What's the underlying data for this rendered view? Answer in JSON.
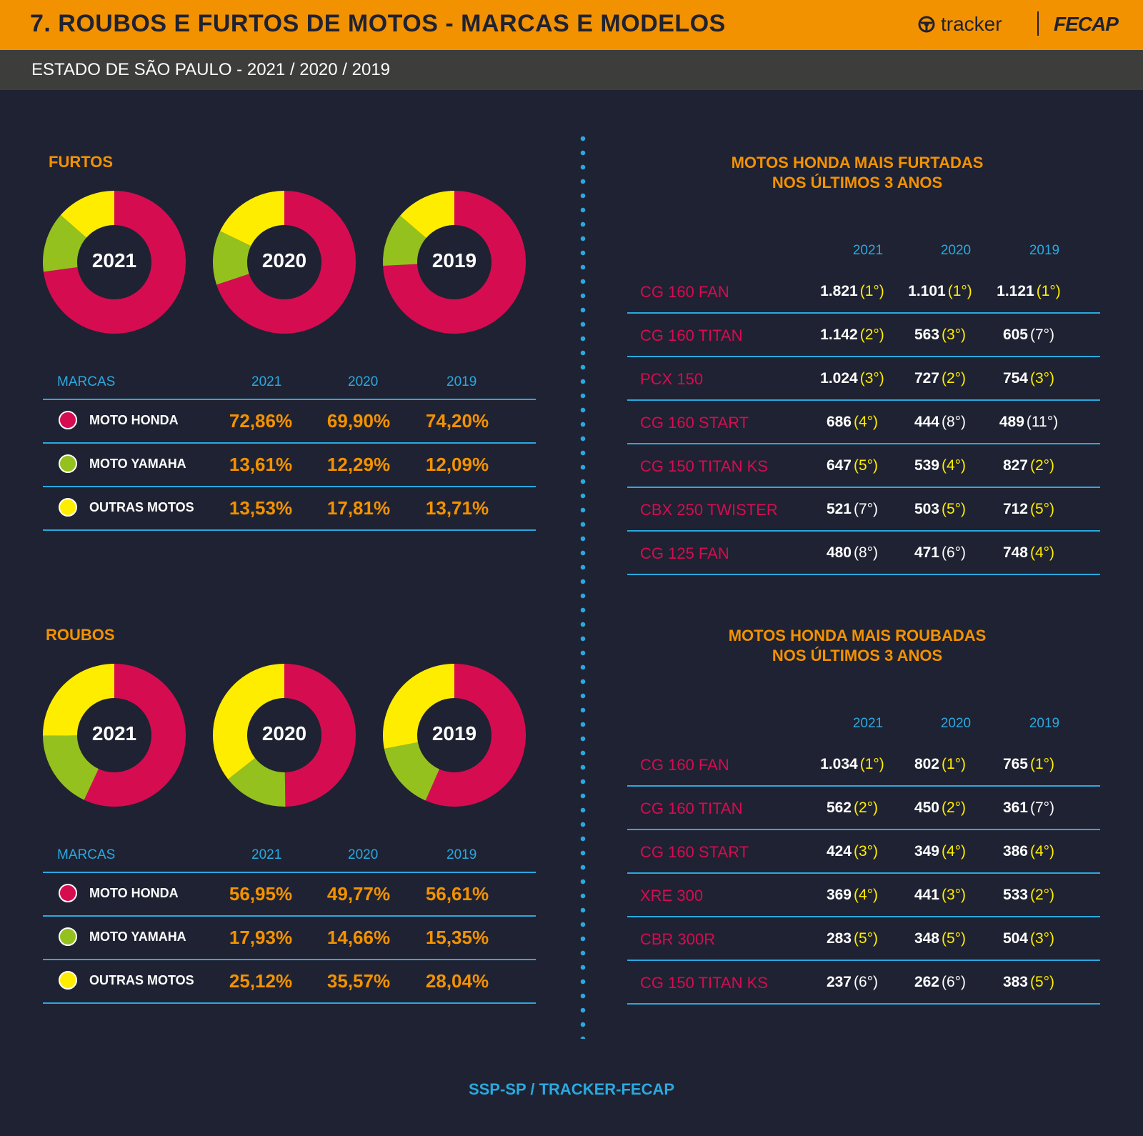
{
  "header": {
    "title": "7. ROUBOS E FURTOS DE MOTOS - MARCAS E MODELOS",
    "brand_tracker": "tracker",
    "brand_fecap": "FECAP",
    "subtitle": "ESTADO DE SÃO PAULO - 2021 / 2020 / 2019"
  },
  "colors": {
    "honda": "#d60c51",
    "yamaha": "#95c11f",
    "outras": "#ffed00",
    "accent": "#f39200",
    "blue": "#29a9e0",
    "rank_top": "#ffed00",
    "rank_other": "#ffffff"
  },
  "chart_data": [
    {
      "type": "pie",
      "title": "FURTOS",
      "categories": [
        "MOTO HONDA",
        "MOTO YAMAHA",
        "OUTRAS MOTOS"
      ],
      "series": [
        {
          "name": "2021",
          "values": [
            72.86,
            13.61,
            13.53
          ]
        },
        {
          "name": "2020",
          "values": [
            69.9,
            12.29,
            17.81
          ]
        },
        {
          "name": "2019",
          "values": [
            74.2,
            12.09,
            13.71
          ]
        }
      ]
    },
    {
      "type": "pie",
      "title": "ROUBOS",
      "categories": [
        "MOTO HONDA",
        "MOTO YAMAHA",
        "OUTRAS MOTOS"
      ],
      "series": [
        {
          "name": "2021",
          "values": [
            56.95,
            17.93,
            25.12
          ]
        },
        {
          "name": "2020",
          "values": [
            49.77,
            14.66,
            35.57
          ]
        },
        {
          "name": "2019",
          "values": [
            56.61,
            15.35,
            28.04
          ]
        }
      ]
    }
  ],
  "furtos": {
    "label": "FURTOS",
    "years": [
      "2021",
      "2020",
      "2019"
    ],
    "table": {
      "head": [
        "MARCAS",
        "2021",
        "2020",
        "2019"
      ],
      "rows": [
        {
          "name": "MOTO HONDA",
          "key": "honda",
          "values": [
            "72,86%",
            "69,90%",
            "74,20%"
          ]
        },
        {
          "name": "MOTO YAMAHA",
          "key": "yamaha",
          "values": [
            "13,61%",
            "12,29%",
            "12,09%"
          ]
        },
        {
          "name": "OUTRAS MOTOS",
          "key": "outras",
          "values": [
            "13,53%",
            "17,81%",
            "13,71%"
          ]
        }
      ]
    }
  },
  "roubos": {
    "label": "ROUBOS",
    "years": [
      "2021",
      "2020",
      "2019"
    ],
    "table": {
      "head": [
        "MARCAS",
        "2021",
        "2020",
        "2019"
      ],
      "rows": [
        {
          "name": "MOTO HONDA",
          "key": "honda",
          "values": [
            "56,95%",
            "49,77%",
            "56,61%"
          ]
        },
        {
          "name": "MOTO YAMAHA",
          "key": "yamaha",
          "values": [
            "17,93%",
            "14,66%",
            "15,35%"
          ]
        },
        {
          "name": "OUTRAS MOTOS",
          "key": "outras",
          "values": [
            "25,12%",
            "35,57%",
            "28,04%"
          ]
        }
      ]
    }
  },
  "furtadas": {
    "title_line1": "MOTOS HONDA MAIS FURTADAS",
    "title_line2": "NOS ÚLTIMOS 3 ANOS",
    "years": [
      "2021",
      "2020",
      "2019"
    ],
    "rows": [
      {
        "model": "CG 160 FAN",
        "cells": [
          [
            "1.821",
            "(1°)",
            true
          ],
          [
            "1.101",
            "(1°)",
            true
          ],
          [
            "1.121",
            "(1°)",
            true
          ]
        ]
      },
      {
        "model": "CG 160 TITAN",
        "cells": [
          [
            "1.142",
            "(2°)",
            true
          ],
          [
            "563",
            "(3°)",
            true
          ],
          [
            "605",
            "(7°)",
            false
          ]
        ]
      },
      {
        "model": "PCX 150",
        "cells": [
          [
            "1.024",
            "(3°)",
            true
          ],
          [
            "727",
            "(2°)",
            true
          ],
          [
            "754",
            "(3°)",
            true
          ]
        ]
      },
      {
        "model": "CG 160 START",
        "cells": [
          [
            "686",
            "(4°)",
            true
          ],
          [
            "444",
            "(8°)",
            false
          ],
          [
            "489",
            "(11°)",
            false
          ]
        ]
      },
      {
        "model": "CG 150 TITAN KS",
        "cells": [
          [
            "647",
            "(5°)",
            true
          ],
          [
            "539",
            "(4°)",
            true
          ],
          [
            "827",
            "(2°)",
            true
          ]
        ]
      },
      {
        "model": "CBX 250 TWISTER",
        "cells": [
          [
            "521",
            "(7°)",
            false
          ],
          [
            "503",
            "(5°)",
            true
          ],
          [
            "712",
            "(5°)",
            true
          ]
        ]
      },
      {
        "model": "CG 125 FAN",
        "cells": [
          [
            "480",
            "(8°)",
            false
          ],
          [
            "471",
            "(6°)",
            false
          ],
          [
            "748",
            "(4°)",
            true
          ]
        ]
      }
    ]
  },
  "roubadas": {
    "title_line1": "MOTOS HONDA MAIS ROUBADAS",
    "title_line2": "NOS ÚLTIMOS 3 ANOS",
    "years": [
      "2021",
      "2020",
      "2019"
    ],
    "rows": [
      {
        "model": "CG 160 FAN",
        "cells": [
          [
            "1.034",
            "(1°)",
            true
          ],
          [
            "802",
            "(1°)",
            true
          ],
          [
            "765",
            "(1°)",
            true
          ]
        ]
      },
      {
        "model": "CG 160 TITAN",
        "cells": [
          [
            "562",
            "(2°)",
            true
          ],
          [
            "450",
            "(2°)",
            true
          ],
          [
            "361",
            "(7°)",
            false
          ]
        ]
      },
      {
        "model": "CG 160 START",
        "cells": [
          [
            "424",
            "(3°)",
            true
          ],
          [
            "349",
            "(4°)",
            true
          ],
          [
            "386",
            "(4°)",
            true
          ]
        ]
      },
      {
        "model": "XRE 300",
        "cells": [
          [
            "369",
            "(4°)",
            true
          ],
          [
            "441",
            "(3°)",
            true
          ],
          [
            "533",
            "(2°)",
            true
          ]
        ]
      },
      {
        "model": "CBR 300R",
        "cells": [
          [
            "283",
            "(5°)",
            true
          ],
          [
            "348",
            "(5°)",
            true
          ],
          [
            "504",
            "(3°)",
            true
          ]
        ]
      },
      {
        "model": "CG 150 TITAN KS",
        "cells": [
          [
            "237",
            "(6°)",
            false
          ],
          [
            "262",
            "(6°)",
            false
          ],
          [
            "383",
            "(5°)",
            true
          ]
        ]
      }
    ]
  },
  "footer": "SSP-SP / TRACKER-FECAP"
}
